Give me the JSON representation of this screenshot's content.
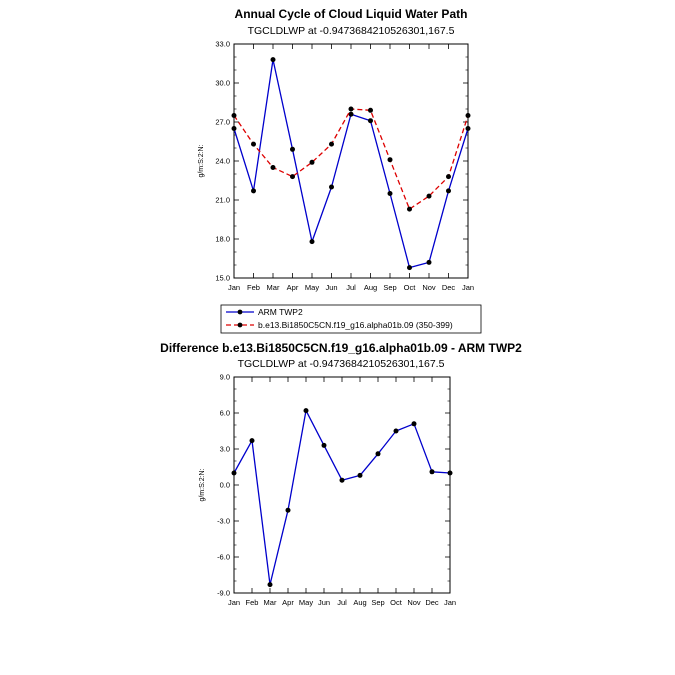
{
  "chart_data": [
    {
      "type": "line",
      "title": "Annual Cycle of Cloud Liquid Water Path",
      "subtitle": "TGCLDLWP at -0.9473684210526301,167.5",
      "ylabel": "g/m:S:2:N:",
      "ylim": [
        15.0,
        33.0
      ],
      "yticks": [
        "15.0",
        "18.0",
        "21.0",
        "24.0",
        "27.0",
        "30.0",
        "33.0"
      ],
      "categories": [
        "Jan",
        "Feb",
        "Mar",
        "Apr",
        "May",
        "Jun",
        "Jul",
        "Aug",
        "Sep",
        "Oct",
        "Nov",
        "Dec",
        "Jan"
      ],
      "series": [
        {
          "name": "ARM TWP2",
          "color": "#0000cc",
          "dash": "solid",
          "values": [
            26.5,
            21.7,
            31.8,
            24.9,
            17.8,
            22.0,
            27.6,
            27.1,
            21.5,
            15.8,
            16.2,
            21.7,
            26.5
          ]
        },
        {
          "name": "b.e13.Bi1850C5CN.f19_g16.alpha01b.09 (350-399)",
          "color": "#dd0000",
          "dash": "dashed",
          "values": [
            27.5,
            25.3,
            23.5,
            22.8,
            23.9,
            25.3,
            28.0,
            27.9,
            24.1,
            20.3,
            21.3,
            22.8,
            27.5
          ]
        }
      ],
      "legend": [
        "ARM TWP2",
        "b.e13.Bi1850C5CN.f19_g16.alpha01b.09 (350-399)"
      ]
    },
    {
      "type": "line",
      "title": "Difference b.e13.Bi1850C5CN.f19_g16.alpha01b.09 - ARM TWP2",
      "subtitle": "TGCLDLWP at -0.9473684210526301,167.5",
      "ylabel": "g/m:S:2:N:",
      "ylim": [
        -9.0,
        9.0
      ],
      "yticks": [
        "-9.0",
        "-6.0",
        "-3.0",
        "0.0",
        "3.0",
        "6.0",
        "9.0"
      ],
      "categories": [
        "Jan",
        "Feb",
        "Mar",
        "Apr",
        "May",
        "Jun",
        "Jul",
        "Aug",
        "Sep",
        "Oct",
        "Nov",
        "Dec",
        "Jan"
      ],
      "series": [
        {
          "name": "Difference",
          "color": "#0000cc",
          "dash": "solid",
          "values": [
            1.0,
            3.7,
            -8.3,
            -2.1,
            6.2,
            3.3,
            0.4,
            0.8,
            2.6,
            4.5,
            5.1,
            1.1,
            1.0
          ]
        }
      ]
    }
  ]
}
